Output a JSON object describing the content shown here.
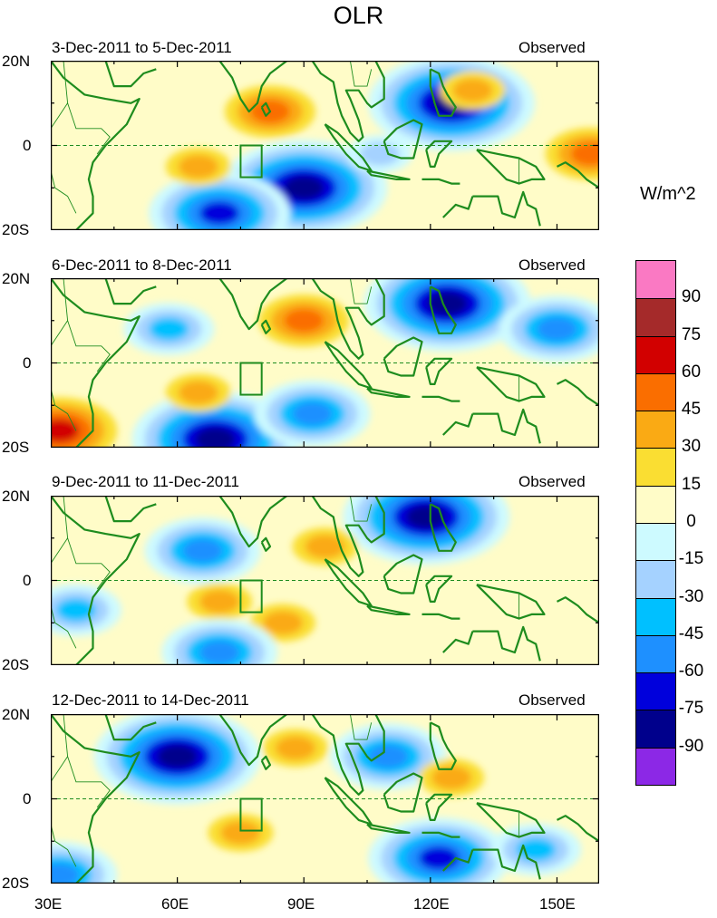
{
  "title": "OLR",
  "units": "W/m^2",
  "colors": {
    "land": "#1e8c1e",
    "equator": "#1e8c1e"
  },
  "chart_data": {
    "type": "heatmap",
    "variable": "Outgoing Longwave Radiation anomaly",
    "xlim": [
      30,
      160
    ],
    "ylim": [
      -20,
      20
    ],
    "x_ticks": [
      "30E",
      "60E",
      "90E",
      "120E",
      "150E"
    ],
    "y_ticks": [
      "20N",
      "0",
      "20S"
    ],
    "legend": {
      "labels": [
        "90",
        "75",
        "60",
        "45",
        "30",
        "15",
        "0",
        "-15",
        "-30",
        "-45",
        "-60",
        "-75",
        "-90"
      ],
      "colors": [
        "#fa79c3",
        "#a52a2a",
        "#d20000",
        "#fa6e00",
        "#faaa14",
        "#fade32",
        "#fffcc8",
        "#cdfaff",
        "#a5d2ff",
        "#00c0ff",
        "#1e90ff",
        "#0000dc",
        "#00008c",
        "#8c28e6"
      ]
    },
    "box": {
      "lon": [
        75,
        80
      ],
      "lat": [
        -7.5,
        0
      ]
    },
    "panels": [
      {
        "period": "3-Dec-2011 to 5-Dec-2011",
        "source": "Observed",
        "features": [
          {
            "lon": 125,
            "lat": 10,
            "value": -90
          },
          {
            "lon": 90,
            "lat": -10,
            "value": -90
          },
          {
            "lon": 70,
            "lat": -16,
            "value": -75
          },
          {
            "lon": 82,
            "lat": 8,
            "value": 45
          },
          {
            "lon": 65,
            "lat": -5,
            "value": 30
          },
          {
            "lon": 130,
            "lat": 13,
            "value": 30
          },
          {
            "lon": 108,
            "lat": -2,
            "value": -30
          },
          {
            "lon": 158,
            "lat": -2,
            "value": 45
          }
        ]
      },
      {
        "period": "6-Dec-2011 to 8-Dec-2011",
        "source": "Observed",
        "features": [
          {
            "lon": 124,
            "lat": 14,
            "value": -90
          },
          {
            "lon": 69,
            "lat": -18,
            "value": -90
          },
          {
            "lon": 90,
            "lat": 10,
            "value": 45
          },
          {
            "lon": 65,
            "lat": -7,
            "value": 30
          },
          {
            "lon": 92,
            "lat": -12,
            "value": -60
          },
          {
            "lon": 32,
            "lat": -16,
            "value": 60
          },
          {
            "lon": 150,
            "lat": 8,
            "value": -60
          },
          {
            "lon": 58,
            "lat": 8,
            "value": -45
          }
        ]
      },
      {
        "period": "9-Dec-2011 to 11-Dec-2011",
        "source": "Observed",
        "features": [
          {
            "lon": 119,
            "lat": 15,
            "value": -90
          },
          {
            "lon": 66,
            "lat": 7,
            "value": -60
          },
          {
            "lon": 70,
            "lat": -5,
            "value": 30
          },
          {
            "lon": 85,
            "lat": -10,
            "value": 30
          },
          {
            "lon": 70,
            "lat": -17,
            "value": -60
          },
          {
            "lon": 36,
            "lat": -7,
            "value": -45
          },
          {
            "lon": 95,
            "lat": 8,
            "value": 30
          }
        ]
      },
      {
        "period": "12-Dec-2011 to 14-Dec-2011",
        "source": "Observed",
        "features": [
          {
            "lon": 60,
            "lat": 10,
            "value": -90
          },
          {
            "lon": 75,
            "lat": -8,
            "value": 30
          },
          {
            "lon": 88,
            "lat": 12,
            "value": 30
          },
          {
            "lon": 122,
            "lat": -14,
            "value": -75
          },
          {
            "lon": 110,
            "lat": 10,
            "value": -60
          },
          {
            "lon": 145,
            "lat": -12,
            "value": -45
          },
          {
            "lon": 32,
            "lat": -18,
            "value": -60
          },
          {
            "lon": 125,
            "lat": 5,
            "value": 30
          }
        ]
      }
    ]
  }
}
